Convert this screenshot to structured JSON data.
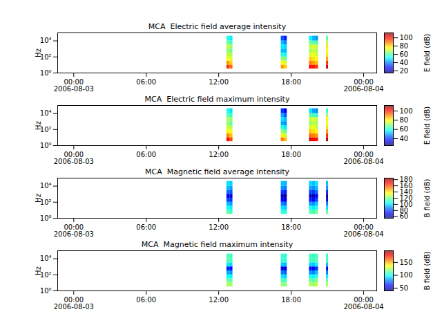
{
  "chart_data": [
    {
      "type": "heatmap",
      "title": "MCA  Electric field average intensity",
      "y_label": "Hz",
      "log": "y",
      "xlim": [
        "2006-08-02T22:40",
        "2006-08-04T01:05"
      ],
      "xticks": [
        {
          "value": "2006-08-03T00:00",
          "label": "00:00\n2006-08-03"
        },
        {
          "value": "2006-08-03T06:00",
          "label": "06:00"
        },
        {
          "value": "2006-08-03T12:00",
          "label": "12:00"
        },
        {
          "value": "2006-08-03T18:00",
          "label": "18:00"
        },
        {
          "value": "2006-08-04T00:00",
          "label": "00:00\n2006-08-04"
        }
      ],
      "ylim": [
        1,
        100000
      ],
      "yticks": [
        {
          "value": 1,
          "label": "10⁰"
        },
        {
          "value": 100,
          "label": "10²"
        },
        {
          "value": 10000,
          "label": "10⁴"
        }
      ],
      "time_bins": [
        [
          "2006-08-03T12:40",
          "2006-08-03T12:55"
        ],
        [
          "2006-08-03T12:55",
          "2006-08-03T13:10"
        ],
        [
          "2006-08-03T17:10",
          "2006-08-03T17:25"
        ],
        [
          "2006-08-03T17:25",
          "2006-08-03T17:40"
        ],
        [
          "2006-08-03T19:30",
          "2006-08-03T19:45"
        ],
        [
          "2006-08-03T19:45",
          "2006-08-03T20:00"
        ],
        [
          "2006-08-03T20:00",
          "2006-08-03T20:15"
        ],
        [
          "2006-08-03T20:55",
          "2006-08-03T21:05"
        ]
      ],
      "freq_bins": [
        3.2,
        10,
        32,
        100,
        320,
        1000,
        3200,
        10000,
        40000
      ],
      "values": [
        [
          95,
          85,
          75,
          70,
          65,
          70,
          60,
          55
        ],
        [
          90,
          80,
          72,
          68,
          62,
          66,
          58,
          50
        ],
        [
          85,
          75,
          65,
          55,
          45,
          50,
          45,
          35
        ],
        [
          80,
          72,
          62,
          52,
          45,
          48,
          40,
          30
        ],
        [
          100,
          88,
          80,
          72,
          66,
          70,
          62,
          50
        ],
        [
          98,
          85,
          78,
          75,
          70,
          72,
          60,
          45
        ],
        [
          95,
          82,
          76,
          70,
          68,
          70,
          58,
          42
        ],
        [
          105,
          95,
          85,
          78,
          75,
          78,
          70,
          60
        ]
      ],
      "color": "jet",
      "colorbar": {
        "label": "E field (dB)",
        "range": [
          15,
          112
        ],
        "ticks": [
          20,
          40,
          60,
          80,
          100
        ]
      }
    },
    {
      "type": "heatmap",
      "title": "MCA  Electric field maximum intensity",
      "y_label": "Hz",
      "log": "y",
      "xlim": [
        "2006-08-02T22:40",
        "2006-08-04T01:05"
      ],
      "xticks": [
        {
          "value": "2006-08-03T00:00",
          "label": "00:00\n2006-08-03"
        },
        {
          "value": "2006-08-03T06:00",
          "label": "06:00"
        },
        {
          "value": "2006-08-03T12:00",
          "label": "12:00"
        },
        {
          "value": "2006-08-03T18:00",
          "label": "18:00"
        },
        {
          "value": "2006-08-04T00:00",
          "label": "00:00\n2006-08-04"
        }
      ],
      "ylim": [
        1,
        100000
      ],
      "yticks": [
        {
          "value": 1,
          "label": "10⁰"
        },
        {
          "value": 100,
          "label": "10²"
        },
        {
          "value": 10000,
          "label": "10⁴"
        }
      ],
      "time_bins": [
        [
          "2006-08-03T12:40",
          "2006-08-03T12:55"
        ],
        [
          "2006-08-03T12:55",
          "2006-08-03T13:10"
        ],
        [
          "2006-08-03T17:10",
          "2006-08-03T17:25"
        ],
        [
          "2006-08-03T17:25",
          "2006-08-03T17:40"
        ],
        [
          "2006-08-03T19:30",
          "2006-08-03T19:45"
        ],
        [
          "2006-08-03T19:45",
          "2006-08-03T20:00"
        ],
        [
          "2006-08-03T20:00",
          "2006-08-03T20:15"
        ],
        [
          "2006-08-03T20:55",
          "2006-08-03T21:05"
        ]
      ],
      "freq_bins": [
        3.2,
        10,
        32,
        100,
        320,
        1000,
        3200,
        10000,
        40000
      ],
      "values": [
        [
          100,
          90,
          80,
          75,
          70,
          72,
          65,
          60
        ],
        [
          95,
          85,
          78,
          72,
          66,
          70,
          62,
          55
        ],
        [
          90,
          80,
          70,
          60,
          50,
          55,
          50,
          40
        ],
        [
          85,
          75,
          66,
          56,
          48,
          52,
          44,
          35
        ],
        [
          105,
          92,
          84,
          76,
          70,
          74,
          66,
          55
        ],
        [
          102,
          90,
          82,
          78,
          74,
          76,
          64,
          50
        ],
        [
          100,
          88,
          80,
          74,
          72,
          74,
          62,
          48
        ],
        [
          108,
          98,
          88,
          82,
          78,
          80,
          72,
          62
        ]
      ],
      "color": "jet",
      "colorbar": {
        "label": "E field (dB)",
        "range": [
          25,
          112
        ],
        "ticks": [
          40,
          60,
          80,
          100
        ]
      }
    },
    {
      "type": "heatmap",
      "title": "MCA  Magnetic field average intensity",
      "y_label": "Hz",
      "log": "y",
      "xlim": [
        "2006-08-02T22:40",
        "2006-08-04T01:05"
      ],
      "xticks": [
        {
          "value": "2006-08-03T00:00",
          "label": "00:00\n2006-08-03"
        },
        {
          "value": "2006-08-03T06:00",
          "label": "06:00"
        },
        {
          "value": "2006-08-03T12:00",
          "label": "12:00"
        },
        {
          "value": "2006-08-03T18:00",
          "label": "18:00"
        },
        {
          "value": "2006-08-04T00:00",
          "label": "00:00\n2006-08-04"
        }
      ],
      "ylim": [
        1,
        100000
      ],
      "yticks": [
        {
          "value": 1,
          "label": "10⁰"
        },
        {
          "value": 100,
          "label": "10²"
        },
        {
          "value": 10000,
          "label": "10⁴"
        }
      ],
      "time_bins": [
        [
          "2006-08-03T12:40",
          "2006-08-03T12:55"
        ],
        [
          "2006-08-03T12:55",
          "2006-08-03T13:10"
        ],
        [
          "2006-08-03T17:10",
          "2006-08-03T17:25"
        ],
        [
          "2006-08-03T17:25",
          "2006-08-03T17:40"
        ],
        [
          "2006-08-03T19:30",
          "2006-08-03T19:45"
        ],
        [
          "2006-08-03T19:45",
          "2006-08-03T20:00"
        ],
        [
          "2006-08-03T20:00",
          "2006-08-03T20:15"
        ],
        [
          "2006-08-03T20:55",
          "2006-08-03T21:05"
        ]
      ],
      "freq_bins": [
        3.2,
        10,
        32,
        100,
        320,
        1000,
        3200,
        10000,
        40000
      ],
      "values": [
        [
          115,
          105,
          95,
          80,
          70,
          85,
          95,
          100
        ],
        [
          112,
          102,
          92,
          78,
          68,
          82,
          92,
          98
        ],
        [
          110,
          100,
          88,
          72,
          62,
          78,
          90,
          96
        ],
        [
          108,
          98,
          85,
          70,
          60,
          75,
          88,
          94
        ],
        [
          115,
          105,
          92,
          75,
          65,
          80,
          92,
          98
        ],
        [
          112,
          102,
          90,
          72,
          62,
          78,
          90,
          96
        ],
        [
          120,
          108,
          96,
          80,
          70,
          85,
          95,
          100
        ],
        [
          115,
          100,
          88,
          70,
          60,
          76,
          90,
          95
        ]
      ],
      "color": "jet",
      "colorbar": {
        "label": "B field (dB)",
        "range": [
          55,
          185
        ],
        "ticks": [
          60,
          80,
          100,
          120,
          140,
          160,
          180
        ]
      }
    },
    {
      "type": "heatmap",
      "title": "MCA  Magnetic field maximum intensity",
      "y_label": "Hz",
      "log": "y",
      "xlim": [
        "2006-08-02T22:40",
        "2006-08-04T01:05"
      ],
      "xticks": [
        {
          "value": "2006-08-03T00:00",
          "label": "00:00\n2006-08-03"
        },
        {
          "value": "2006-08-03T06:00",
          "label": "06:00"
        },
        {
          "value": "2006-08-03T12:00",
          "label": "12:00"
        },
        {
          "value": "2006-08-03T18:00",
          "label": "18:00"
        },
        {
          "value": "2006-08-04T00:00",
          "label": "00:00\n2006-08-04"
        }
      ],
      "ylim": [
        1,
        100000
      ],
      "yticks": [
        {
          "value": 1,
          "label": "10⁰"
        },
        {
          "value": 100,
          "label": "10²"
        },
        {
          "value": 10000,
          "label": "10⁴"
        }
      ],
      "time_bins": [
        [
          "2006-08-03T12:40",
          "2006-08-03T12:55"
        ],
        [
          "2006-08-03T12:55",
          "2006-08-03T13:10"
        ],
        [
          "2006-08-03T17:10",
          "2006-08-03T17:25"
        ],
        [
          "2006-08-03T17:25",
          "2006-08-03T17:40"
        ],
        [
          "2006-08-03T19:30",
          "2006-08-03T19:45"
        ],
        [
          "2006-08-03T19:45",
          "2006-08-03T20:00"
        ],
        [
          "2006-08-03T20:00",
          "2006-08-03T20:15"
        ],
        [
          "2006-08-03T20:55",
          "2006-08-03T21:05"
        ]
      ],
      "freq_bins": [
        3.2,
        10,
        32,
        100,
        320,
        1000,
        3200,
        10000,
        40000
      ],
      "values": [
        [
          125,
          115,
          100,
          85,
          65,
          95,
          110,
          110
        ],
        [
          122,
          112,
          98,
          82,
          62,
          92,
          108,
          108
        ],
        [
          120,
          110,
          95,
          78,
          58,
          90,
          106,
          106
        ],
        [
          118,
          108,
          92,
          75,
          55,
          88,
          104,
          104
        ],
        [
          125,
          115,
          100,
          82,
          62,
          92,
          108,
          108
        ],
        [
          122,
          112,
          98,
          80,
          60,
          90,
          106,
          106
        ],
        [
          128,
          118,
          104,
          88,
          66,
          96,
          110,
          110
        ],
        [
          124,
          112,
          96,
          78,
          58,
          88,
          106,
          106
        ]
      ],
      "color": "jet",
      "colorbar": {
        "label": "B field (dB)",
        "range": [
          40,
          195
        ],
        "ticks": [
          50,
          100,
          150
        ]
      }
    }
  ]
}
